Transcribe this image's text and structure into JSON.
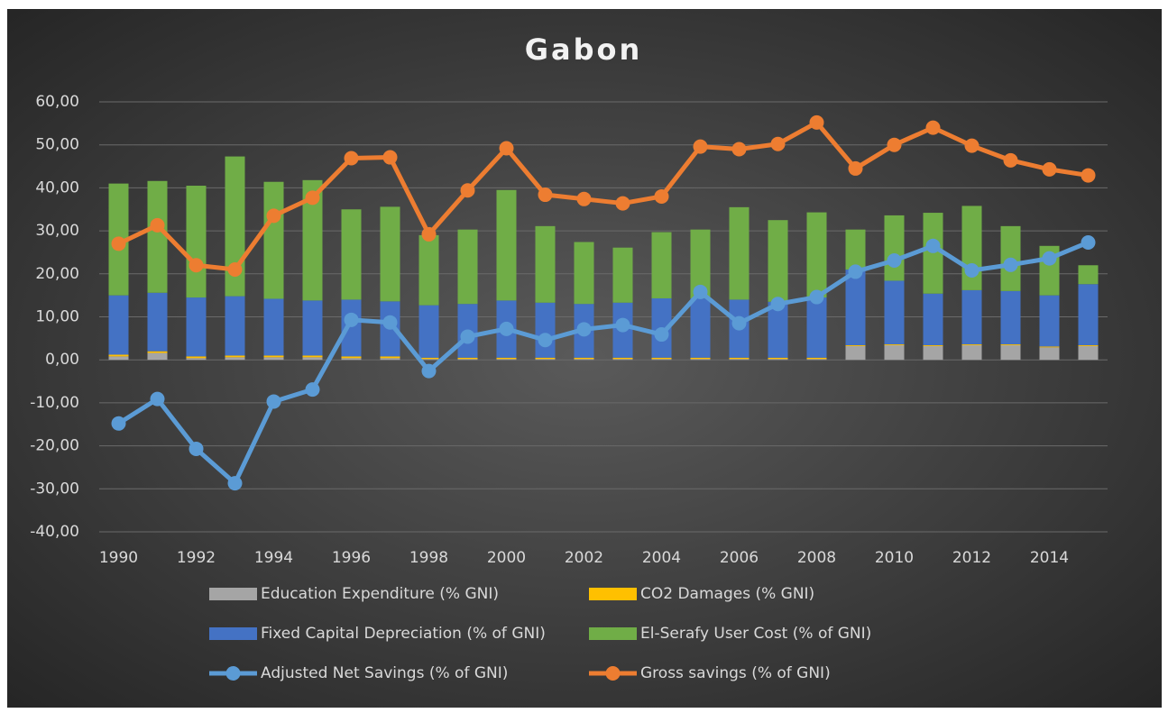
{
  "chart_data": {
    "type": "combo",
    "title": "Gabon",
    "categories": [
      "1990",
      null,
      "1992",
      null,
      "1994",
      null,
      "1996",
      null,
      "1998",
      null,
      "2000",
      null,
      "2002",
      null,
      "2004",
      null,
      "2006",
      null,
      "2008",
      null,
      "2010",
      null,
      "2012",
      null,
      "2014",
      null
    ],
    "ylim": [
      -40,
      60
    ],
    "yticks": [
      {
        "value": -40,
        "label": "-40,00"
      },
      {
        "value": -30,
        "label": "-30,00"
      },
      {
        "value": -20,
        "label": "-20,00"
      },
      {
        "value": -10,
        "label": "-10,00"
      },
      {
        "value": 0,
        "label": "0,00"
      },
      {
        "value": 10,
        "label": "10,00"
      },
      {
        "value": 20,
        "label": "20,00"
      },
      {
        "value": 30,
        "label": "30,00"
      },
      {
        "value": 40,
        "label": "40,00"
      },
      {
        "value": 50,
        "label": "50,00"
      },
      {
        "value": 60,
        "label": "60,00"
      }
    ],
    "grid": true,
    "legend": "bottom",
    "series": [
      {
        "name": "Education Expenditure (% GNI)",
        "type": "bar",
        "color": "#a5a5a5",
        "values": [
          0.8,
          1.6,
          0.4,
          0.6,
          0.6,
          0.6,
          0.4,
          0.4,
          0.2,
          0.2,
          0.2,
          0.2,
          0.2,
          0.2,
          0.2,
          0.2,
          0.2,
          0.2,
          0.2,
          3.2,
          3.4,
          3.2,
          3.4,
          3.4,
          2.9,
          3.2
        ]
      },
      {
        "name": "CO2 Damages (% GNI)",
        "type": "bar",
        "color": "#ffc000",
        "values": [
          0.4,
          0.4,
          0.4,
          0.4,
          0.4,
          0.4,
          0.4,
          0.4,
          0.3,
          0.3,
          0.3,
          0.3,
          0.3,
          0.3,
          0.3,
          0.3,
          0.3,
          0.3,
          0.3,
          0.2,
          0.2,
          0.2,
          0.2,
          0.2,
          0.2,
          0.2
        ]
      },
      {
        "name": "Fixed Capital Depreciation (% of GNI)",
        "type": "bar",
        "color": "#4472c4",
        "values": [
          13.8,
          13.6,
          13.7,
          13.8,
          13.2,
          12.8,
          13.2,
          12.8,
          12.2,
          12.5,
          13.3,
          12.8,
          12.5,
          12.8,
          13.8,
          13.8,
          13.5,
          13.0,
          14.0,
          17.6,
          14.8,
          12.0,
          12.6,
          12.4,
          11.9,
          14.2
        ]
      },
      {
        "name": "El-Serafy User Cost (% of GNI)",
        "type": "bar",
        "color": "#70ad47",
        "values": [
          26,
          26,
          26,
          32.5,
          27.2,
          28,
          21,
          22,
          16.3,
          17.3,
          25.7,
          17.8,
          14.4,
          12.8,
          15.4,
          16,
          21.5,
          19,
          19.8,
          9.3,
          15.2,
          18.8,
          19.6,
          15.1,
          11.5,
          4.4
        ]
      },
      {
        "name": "Adjusted Net Savings (% of GNI)",
        "type": "line",
        "color": "#5b9bd5",
        "values": [
          -14.8,
          -9.1,
          -20.7,
          -28.7,
          -9.7,
          -6.9,
          9.3,
          8.7,
          -2.6,
          5.4,
          7.2,
          4.6,
          7.1,
          8.1,
          5.9,
          15.8,
          8.5,
          13,
          14.6,
          20.5,
          23.1,
          26.5,
          20.8,
          22.1,
          23.6,
          27.3
        ]
      },
      {
        "name": "Gross savings (% of GNI)",
        "type": "line",
        "color": "#ed7d31",
        "values": [
          27,
          31.3,
          22,
          21,
          33.5,
          37.7,
          46.9,
          47.1,
          29.2,
          39.4,
          49.2,
          38.4,
          37.4,
          36.4,
          38,
          49.6,
          49,
          50.2,
          55.2,
          44.5,
          50,
          54,
          49.8,
          46.4,
          44.3,
          42.9
        ]
      }
    ]
  }
}
